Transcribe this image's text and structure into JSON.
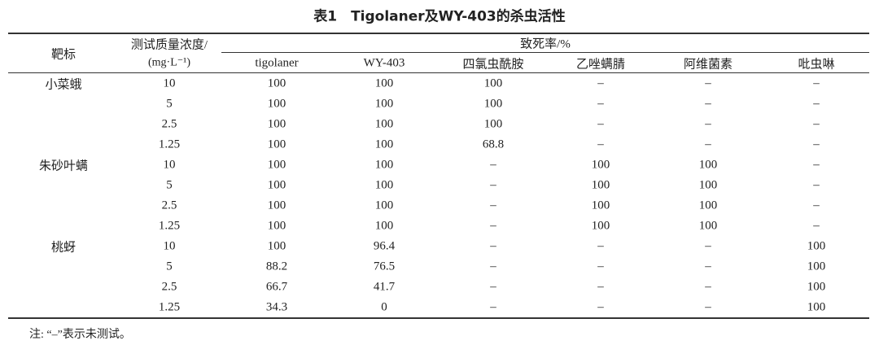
{
  "title": "表1　Tigolaner及WY-403的杀虫活性",
  "header": {
    "target": "靶标",
    "conc_line1": "测试质量浓度/",
    "conc_line2": "(mg·L⁻¹)",
    "mortality": "致死率/%",
    "columns": [
      "tigolaner",
      "WY-403",
      "四氯虫酰胺",
      "乙唑螨腈",
      "阿维菌素",
      "吡虫啉"
    ]
  },
  "groups": [
    {
      "target": "小菜蛾",
      "rows": [
        [
          "10",
          "100",
          "100",
          "100",
          "–",
          "–",
          "–"
        ],
        [
          "5",
          "100",
          "100",
          "100",
          "–",
          "–",
          "–"
        ],
        [
          "2.5",
          "100",
          "100",
          "100",
          "–",
          "–",
          "–"
        ],
        [
          "1.25",
          "100",
          "100",
          "68.8",
          "–",
          "–",
          "–"
        ]
      ]
    },
    {
      "target": "朱砂叶螨",
      "rows": [
        [
          "10",
          "100",
          "100",
          "–",
          "100",
          "100",
          "–"
        ],
        [
          "5",
          "100",
          "100",
          "–",
          "100",
          "100",
          "–"
        ],
        [
          "2.5",
          "100",
          "100",
          "–",
          "100",
          "100",
          "–"
        ],
        [
          "1.25",
          "100",
          "100",
          "–",
          "100",
          "100",
          "–"
        ]
      ]
    },
    {
      "target": "桃蚜",
      "rows": [
        [
          "10",
          "100",
          "96.4",
          "–",
          "–",
          "–",
          "100"
        ],
        [
          "5",
          "88.2",
          "76.5",
          "–",
          "–",
          "–",
          "100"
        ],
        [
          "2.5",
          "66.7",
          "41.7",
          "–",
          "–",
          "–",
          "100"
        ],
        [
          "1.25",
          "34.3",
          "0",
          "–",
          "–",
          "–",
          "100"
        ]
      ]
    }
  ],
  "note": "注: “–”表示未测试。"
}
